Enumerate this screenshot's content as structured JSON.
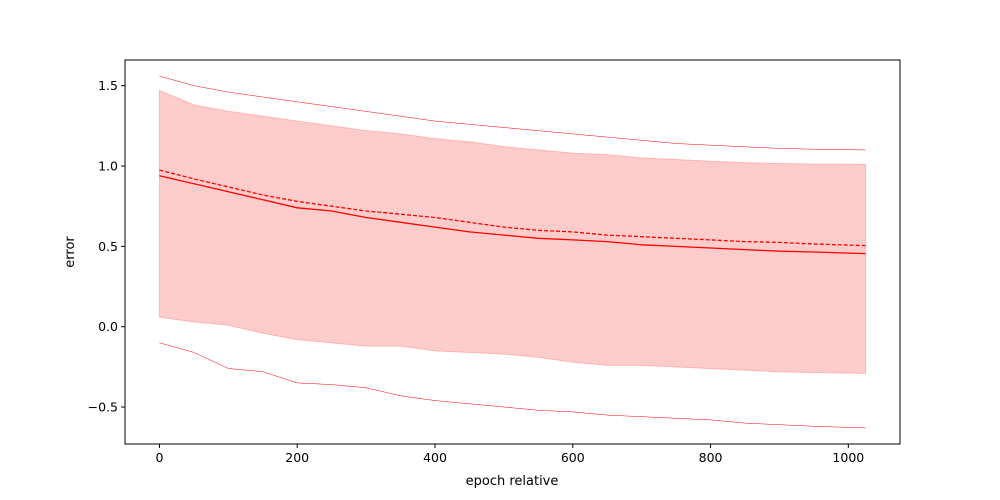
{
  "chart_data": {
    "type": "line",
    "title": "",
    "xlabel": "epoch relative",
    "ylabel": "error",
    "xlim": [
      -50,
      1075
    ],
    "ylim": [
      -0.73,
      1.66
    ],
    "grid": false,
    "legend": "none",
    "x_ticks": [
      0,
      200,
      400,
      600,
      800,
      1000
    ],
    "y_ticks": [
      -0.5,
      0.0,
      0.5,
      1.0,
      1.5
    ],
    "x_tick_labels": [
      "0",
      "200",
      "400",
      "600",
      "800",
      "1000"
    ],
    "y_tick_labels": [
      "−0.5",
      "0.0",
      "0.5",
      "1.0",
      "1.5"
    ],
    "colors": {
      "line": "#ff0000",
      "band": "#ffcccc",
      "band_edge": "#ffb3b3"
    },
    "x": [
      0,
      50,
      100,
      150,
      200,
      250,
      300,
      350,
      400,
      450,
      500,
      550,
      600,
      650,
      700,
      750,
      800,
      850,
      900,
      950,
      1025
    ],
    "series": [
      {
        "role": "solid-line",
        "values": [
          0.94,
          0.89,
          0.84,
          0.79,
          0.74,
          0.72,
          0.68,
          0.65,
          0.62,
          0.59,
          0.57,
          0.55,
          0.54,
          0.53,
          0.51,
          0.5,
          0.49,
          0.48,
          0.47,
          0.465,
          0.455
        ]
      },
      {
        "role": "dashed-line",
        "values": [
          0.975,
          0.92,
          0.87,
          0.82,
          0.78,
          0.75,
          0.72,
          0.7,
          0.68,
          0.65,
          0.62,
          0.6,
          0.59,
          0.57,
          0.56,
          0.55,
          0.54,
          0.53,
          0.525,
          0.515,
          0.505
        ]
      },
      {
        "role": "band-upper",
        "values": [
          1.47,
          1.38,
          1.34,
          1.31,
          1.28,
          1.25,
          1.22,
          1.2,
          1.17,
          1.15,
          1.12,
          1.1,
          1.08,
          1.07,
          1.05,
          1.04,
          1.03,
          1.02,
          1.015,
          1.012,
          1.01
        ]
      },
      {
        "role": "band-lower",
        "values": [
          0.06,
          0.03,
          0.01,
          -0.04,
          -0.08,
          -0.1,
          -0.12,
          -0.12,
          -0.15,
          -0.16,
          -0.17,
          -0.19,
          -0.22,
          -0.24,
          -0.24,
          -0.25,
          -0.26,
          -0.27,
          -0.28,
          -0.285,
          -0.29
        ]
      },
      {
        "role": "thin-upper",
        "values": [
          1.56,
          1.5,
          1.46,
          1.43,
          1.4,
          1.37,
          1.34,
          1.31,
          1.28,
          1.26,
          1.24,
          1.22,
          1.2,
          1.18,
          1.16,
          1.14,
          1.13,
          1.12,
          1.11,
          1.105,
          1.1
        ]
      },
      {
        "role": "thin-lower",
        "values": [
          -0.1,
          -0.16,
          -0.26,
          -0.28,
          -0.35,
          -0.36,
          -0.38,
          -0.43,
          -0.46,
          -0.48,
          -0.5,
          -0.52,
          -0.53,
          -0.55,
          -0.56,
          -0.57,
          -0.58,
          -0.6,
          -0.61,
          -0.62,
          -0.63
        ]
      }
    ]
  }
}
